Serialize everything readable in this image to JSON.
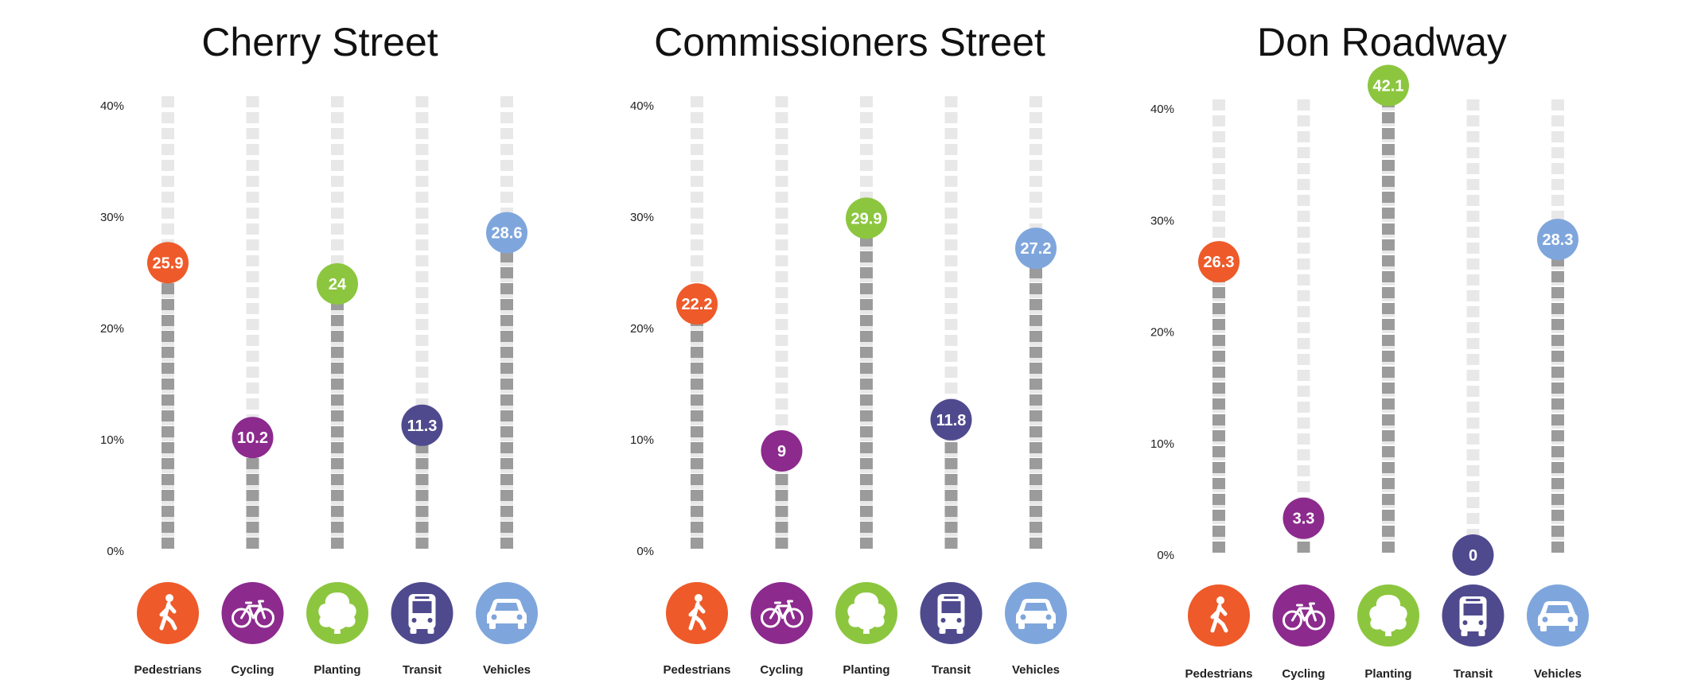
{
  "colors": {
    "track": "#e8e8e8",
    "bar": "#9b9b9b",
    "Pedestrians": "#ee5a2a",
    "Cycling": "#8c2a8e",
    "Planting": "#8cc63f",
    "Transit": "#4f4a8e",
    "Vehicles": "#7fa6dc"
  },
  "icons": {
    "Pedestrians": "pedestrian-icon",
    "Cycling": "bicycle-icon",
    "Planting": "tree-icon",
    "Transit": "bus-icon",
    "Vehicles": "car-icon"
  },
  "chart_data": [
    {
      "type": "bar",
      "title": "Cherry Street",
      "categories": [
        "Pedestrians",
        "Cycling",
        "Planting",
        "Transit",
        "Vehicles"
      ],
      "values": [
        25.9,
        10.2,
        24,
        11.3,
        28.6
      ],
      "value_labels": [
        "25.9",
        "10.2",
        "24",
        "11.3",
        "28.6"
      ],
      "ylim": [
        0,
        40
      ],
      "yticks": [
        "0%",
        "10%",
        "20%",
        "30%",
        "40%"
      ],
      "xlabel": "",
      "ylabel": ""
    },
    {
      "type": "bar",
      "title": "Commissioners Street",
      "categories": [
        "Pedestrians",
        "Cycling",
        "Planting",
        "Transit",
        "Vehicles"
      ],
      "values": [
        22.2,
        9,
        29.9,
        11.8,
        27.2
      ],
      "value_labels": [
        "22.2",
        "9",
        "29.9",
        "11.8",
        "27.2"
      ],
      "ylim": [
        0,
        40
      ],
      "yticks": [
        "0%",
        "10%",
        "20%",
        "30%",
        "40%"
      ],
      "xlabel": "",
      "ylabel": ""
    },
    {
      "type": "bar",
      "title": "Don Roadway",
      "categories": [
        "Pedestrians",
        "Cycling",
        "Planting",
        "Transit",
        "Vehicles"
      ],
      "values": [
        26.3,
        3.3,
        42.1,
        0,
        28.3
      ],
      "value_labels": [
        "26.3",
        "3.3",
        "42.1",
        "0",
        "28.3"
      ],
      "ylim": [
        0,
        40
      ],
      "yticks": [
        "0%",
        "10%",
        "20%",
        "30%",
        "40%"
      ],
      "xlabel": "",
      "ylabel": ""
    }
  ]
}
